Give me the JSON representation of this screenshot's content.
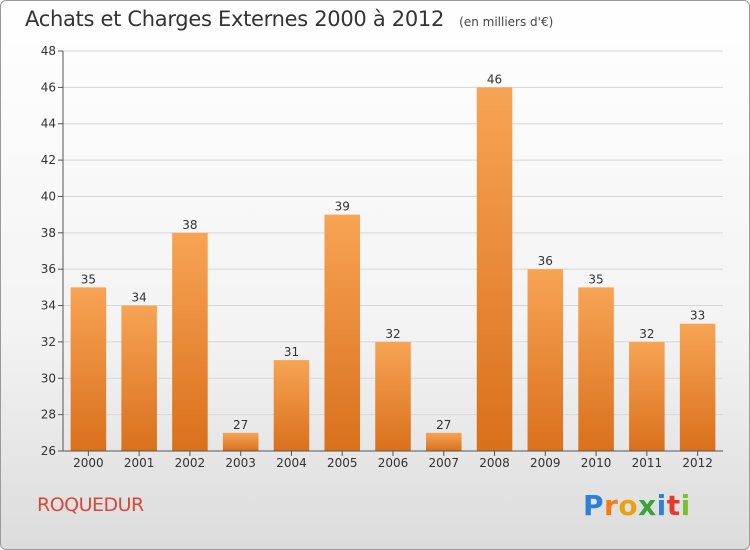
{
  "header": {
    "title": "Achats et Charges Externes 2000 à 2012",
    "unit": "(en milliers d'€)"
  },
  "footer": {
    "place": "ROQUEDUR",
    "logo": [
      "P",
      "r",
      "o",
      "x",
      "i",
      "t",
      "i"
    ]
  },
  "chart_data": {
    "type": "bar",
    "title": "Achats et Charges Externes 2000 à 2012",
    "subtitle": "(en milliers d'€)",
    "xlabel": "",
    "ylabel": "",
    "categories": [
      "2000",
      "2001",
      "2002",
      "2003",
      "2004",
      "2005",
      "2006",
      "2007",
      "2008",
      "2009",
      "2010",
      "2011",
      "2012"
    ],
    "values": [
      35,
      34,
      38,
      27,
      31,
      39,
      32,
      27,
      46,
      36,
      35,
      32,
      33
    ],
    "ylim": [
      26,
      48
    ],
    "yticks": [
      26,
      28,
      30,
      32,
      34,
      36,
      38,
      40,
      42,
      44,
      46,
      48
    ],
    "grid": "horizontal",
    "legend": "none",
    "bar_color_top": "#f7a455",
    "bar_color_bottom": "#d9701c"
  }
}
